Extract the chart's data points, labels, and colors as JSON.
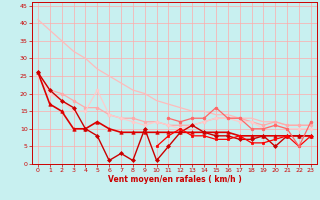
{
  "xlabel": "Vent moyen/en rafales ( km/h )",
  "xlim": [
    -0.5,
    23.5
  ],
  "ylim": [
    0,
    46
  ],
  "yticks": [
    0,
    5,
    10,
    15,
    20,
    25,
    30,
    35,
    40,
    45
  ],
  "xticks": [
    0,
    1,
    2,
    3,
    4,
    5,
    6,
    7,
    8,
    9,
    10,
    11,
    12,
    13,
    14,
    15,
    16,
    17,
    18,
    19,
    20,
    21,
    22,
    23
  ],
  "background_color": "#c8f0f0",
  "grid_color": "#ffaaaa",
  "lines": [
    {
      "x": [
        0,
        1,
        2,
        3,
        4,
        5,
        6,
        7,
        8,
        9,
        10,
        11,
        12,
        13,
        14,
        15,
        16,
        17,
        18,
        19,
        20,
        21,
        22,
        23
      ],
      "y": [
        41,
        38,
        35,
        32,
        30,
        27,
        25,
        23,
        21,
        20,
        18,
        17,
        16,
        15,
        15,
        14,
        14,
        13,
        13,
        12,
        12,
        11,
        11,
        11
      ],
      "color": "#ffbbbb",
      "lw": 0.9,
      "marker": null
    },
    {
      "x": [
        0,
        1,
        2,
        3,
        4,
        5,
        6,
        7,
        8,
        9,
        10,
        11,
        12,
        13,
        14,
        15,
        16,
        17,
        18,
        19,
        20,
        21,
        22,
        23
      ],
      "y": [
        26,
        21,
        20,
        18,
        16,
        16,
        14,
        13,
        13,
        12,
        12,
        11,
        11,
        11,
        12,
        13,
        13,
        13,
        12,
        11,
        12,
        11,
        11,
        11
      ],
      "color": "#ffaaaa",
      "lw": 0.9,
      "marker": "o",
      "markersize": 2.0
    },
    {
      "x": [
        0,
        1,
        2,
        3,
        4,
        5,
        6,
        7,
        8,
        9,
        10,
        11,
        12,
        13,
        14,
        15,
        16,
        17,
        18,
        19,
        20,
        21,
        22,
        23
      ],
      "y": [
        25,
        20,
        18,
        15,
        15,
        21,
        14,
        13,
        12,
        11,
        12,
        11,
        10,
        11,
        12,
        13,
        13,
        12,
        12,
        10,
        11,
        10,
        10,
        10
      ],
      "color": "#ffcccc",
      "lw": 0.9,
      "marker": "o",
      "markersize": 2.0
    },
    {
      "x": [
        0,
        1,
        2,
        3,
        4,
        5,
        6,
        7,
        8,
        9,
        10,
        11,
        12,
        13,
        14,
        15,
        16,
        17,
        18,
        19,
        20,
        21,
        22,
        23
      ],
      "y": [
        26,
        17,
        15,
        10,
        10,
        12,
        10,
        9,
        9,
        9,
        9,
        9,
        9,
        9,
        9,
        9,
        9,
        8,
        8,
        8,
        8,
        8,
        8,
        8
      ],
      "color": "#dd0000",
      "lw": 1.2,
      "marker": "^",
      "markersize": 2.5
    },
    {
      "x": [
        0,
        1,
        2,
        3,
        4,
        5,
        6,
        7,
        8,
        9,
        10,
        11,
        12,
        13,
        14,
        15,
        16,
        17,
        18,
        19,
        20,
        21,
        22,
        23
      ],
      "y": [
        26,
        21,
        18,
        16,
        10,
        8,
        1,
        3,
        1,
        10,
        1,
        5,
        9,
        11,
        9,
        8,
        8,
        7,
        7,
        8,
        5,
        8,
        8,
        8
      ],
      "color": "#cc0000",
      "lw": 1.0,
      "marker": "D",
      "markersize": 2.0
    },
    {
      "x": [
        10,
        11,
        12,
        13,
        14,
        15,
        16,
        17,
        18,
        19,
        20,
        21,
        22,
        23
      ],
      "y": [
        5,
        8,
        10,
        8,
        8,
        7,
        7,
        8,
        6,
        6,
        7,
        8,
        5,
        8
      ],
      "color": "#ff0000",
      "lw": 0.9,
      "marker": "s",
      "markersize": 2.0
    },
    {
      "x": [
        11,
        12,
        13,
        14,
        15,
        16,
        17,
        18,
        19,
        20,
        21,
        22,
        23
      ],
      "y": [
        13,
        12,
        13,
        13,
        16,
        13,
        13,
        10,
        10,
        11,
        10,
        5,
        12
      ],
      "color": "#ff6666",
      "lw": 0.9,
      "marker": "o",
      "markersize": 2.0
    }
  ]
}
